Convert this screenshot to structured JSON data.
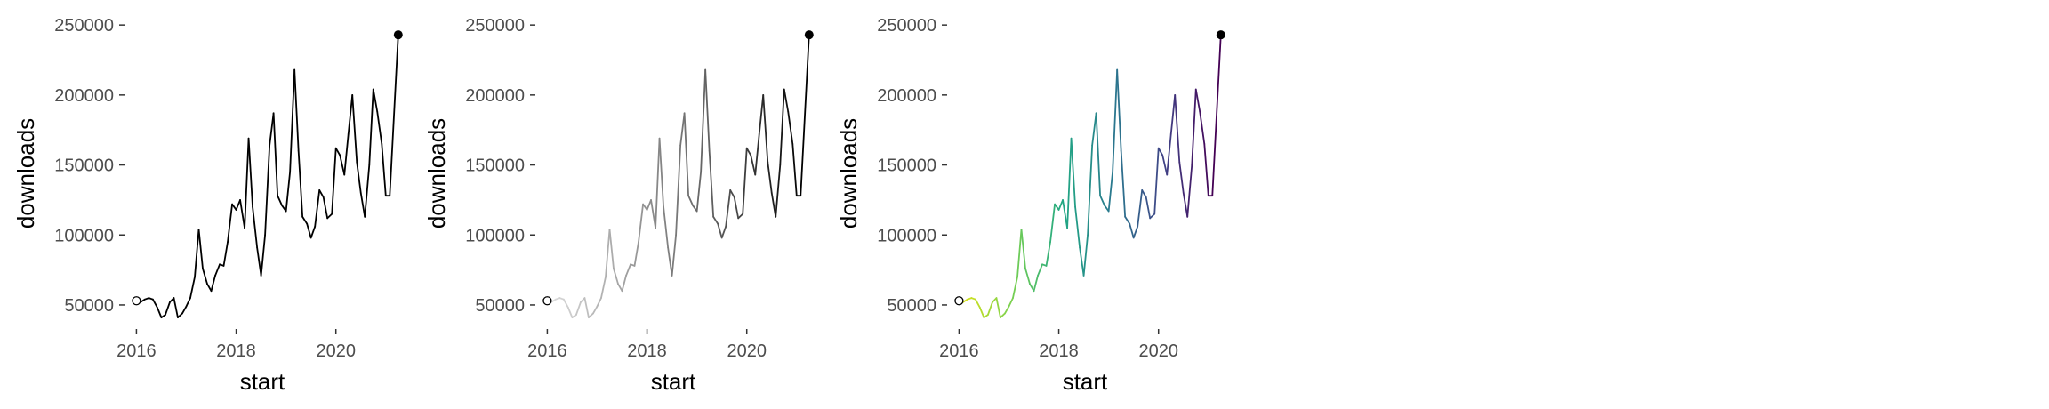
{
  "chart_data": [
    {
      "type": "line",
      "xlabel": "start",
      "ylabel": "downloads",
      "xlim": [
        2015.85,
        2021.2
      ],
      "ylim": [
        36000,
        252000
      ],
      "x_ticks": [
        2016,
        2018,
        2020
      ],
      "x_tick_labels": [
        "2016",
        "2018",
        "2020"
      ],
      "y_ticks": [
        50000,
        100000,
        150000,
        200000,
        250000
      ],
      "y_tick_labels": [
        "50000",
        "100000",
        "150000",
        "200000",
        "250000"
      ],
      "grid": false,
      "line_color": "#000000",
      "color_mode": "solid",
      "start_marker": "open-circle",
      "end_marker": "filled-circle",
      "series": [
        {
          "x": [
            2016.0,
            2016.08,
            2016.17,
            2016.25,
            2016.33,
            2016.42,
            2016.5,
            2016.58,
            2016.67,
            2016.75,
            2016.83,
            2016.92,
            2017.0,
            2017.08,
            2017.17,
            2017.25,
            2017.33,
            2017.42,
            2017.5,
            2017.58,
            2017.67,
            2017.75,
            2017.83,
            2017.92,
            2018.0,
            2018.08,
            2018.17,
            2018.25,
            2018.33,
            2018.42,
            2018.5,
            2018.58,
            2018.67,
            2018.75,
            2018.83,
            2018.92,
            2019.0,
            2019.08,
            2019.17,
            2019.25,
            2019.33,
            2019.42,
            2019.5,
            2019.58,
            2019.67,
            2019.75,
            2019.83,
            2019.92,
            2020.0,
            2020.08,
            2020.17,
            2020.25,
            2020.33,
            2020.42,
            2020.5,
            2020.58,
            2020.67,
            2020.75,
            2020.83,
            2020.92,
            2021.0,
            2021.08
          ],
          "y": [
            53000,
            52000,
            54000,
            55000,
            54000,
            48000,
            41000,
            43000,
            52000,
            55000,
            41000,
            44000,
            49000,
            55000,
            70000,
            104000,
            76000,
            65000,
            60000,
            71000,
            79000,
            78000,
            95000,
            122000,
            118000,
            125000,
            105000,
            169000,
            120000,
            91000,
            71000,
            100000,
            164000,
            187000,
            128000,
            121000,
            117000,
            145000,
            218000,
            160000,
            113000,
            108000,
            98000,
            106000,
            132000,
            127000,
            112000,
            115000,
            162000,
            157000,
            143000,
            172000,
            200000,
            152000,
            130000,
            113000,
            150000,
            204000,
            188000,
            165000,
            128000,
            128000
          ]
        }
      ],
      "end_point": {
        "x": 2021.25,
        "y": 243000
      }
    },
    {
      "type": "line",
      "xlabel": "start",
      "ylabel": "downloads",
      "xlim": [
        2015.85,
        2021.2
      ],
      "ylim": [
        36000,
        252000
      ],
      "x_ticks": [
        2016,
        2018,
        2020
      ],
      "x_tick_labels": [
        "2016",
        "2018",
        "2020"
      ],
      "y_ticks": [
        50000,
        100000,
        150000,
        200000,
        250000
      ],
      "y_tick_labels": [
        "50000",
        "100000",
        "150000",
        "200000",
        "250000"
      ],
      "grid": false,
      "color_mode": "gradient",
      "gradient_colors": [
        "#dddddd",
        "#9a9a9a",
        "#5a5a5a",
        "#000000"
      ],
      "start_marker": "open-circle",
      "end_marker": "filled-circle",
      "series": [
        {
          "x": [
            2016.0,
            2016.08,
            2016.17,
            2016.25,
            2016.33,
            2016.42,
            2016.5,
            2016.58,
            2016.67,
            2016.75,
            2016.83,
            2016.92,
            2017.0,
            2017.08,
            2017.17,
            2017.25,
            2017.33,
            2017.42,
            2017.5,
            2017.58,
            2017.67,
            2017.75,
            2017.83,
            2017.92,
            2018.0,
            2018.08,
            2018.17,
            2018.25,
            2018.33,
            2018.42,
            2018.5,
            2018.58,
            2018.67,
            2018.75,
            2018.83,
            2018.92,
            2019.0,
            2019.08,
            2019.17,
            2019.25,
            2019.33,
            2019.42,
            2019.5,
            2019.58,
            2019.67,
            2019.75,
            2019.83,
            2019.92,
            2020.0,
            2020.08,
            2020.17,
            2020.25,
            2020.33,
            2020.42,
            2020.5,
            2020.58,
            2020.67,
            2020.75,
            2020.83,
            2020.92,
            2021.0,
            2021.08
          ],
          "y": [
            53000,
            52000,
            54000,
            55000,
            54000,
            48000,
            41000,
            43000,
            52000,
            55000,
            41000,
            44000,
            49000,
            55000,
            70000,
            104000,
            76000,
            65000,
            60000,
            71000,
            79000,
            78000,
            95000,
            122000,
            118000,
            125000,
            105000,
            169000,
            120000,
            91000,
            71000,
            100000,
            164000,
            187000,
            128000,
            121000,
            117000,
            145000,
            218000,
            160000,
            113000,
            108000,
            98000,
            106000,
            132000,
            127000,
            112000,
            115000,
            162000,
            157000,
            143000,
            172000,
            200000,
            152000,
            130000,
            113000,
            150000,
            204000,
            188000,
            165000,
            128000,
            128000
          ]
        }
      ],
      "end_point": {
        "x": 2021.25,
        "y": 243000
      }
    },
    {
      "type": "line",
      "xlabel": "start",
      "ylabel": "downloads",
      "xlim": [
        2015.85,
        2021.2
      ],
      "ylim": [
        36000,
        252000
      ],
      "x_ticks": [
        2016,
        2018,
        2020
      ],
      "x_tick_labels": [
        "2016",
        "2018",
        "2020"
      ],
      "y_ticks": [
        50000,
        100000,
        150000,
        200000,
        250000
      ],
      "y_tick_labels": [
        "50000",
        "100000",
        "150000",
        "200000",
        "250000"
      ],
      "grid": false,
      "color_mode": "gradient",
      "gradient_colors": [
        "#dce319",
        "#7ad151",
        "#22a884",
        "#2a788e",
        "#414487",
        "#440154"
      ],
      "start_marker": "open-circle",
      "end_marker": "filled-circle",
      "series": [
        {
          "x": [
            2016.0,
            2016.08,
            2016.17,
            2016.25,
            2016.33,
            2016.42,
            2016.5,
            2016.58,
            2016.67,
            2016.75,
            2016.83,
            2016.92,
            2017.0,
            2017.08,
            2017.17,
            2017.25,
            2017.33,
            2017.42,
            2017.5,
            2017.58,
            2017.67,
            2017.75,
            2017.83,
            2017.92,
            2018.0,
            2018.08,
            2018.17,
            2018.25,
            2018.33,
            2018.42,
            2018.5,
            2018.58,
            2018.67,
            2018.75,
            2018.83,
            2018.92,
            2019.0,
            2019.08,
            2019.17,
            2019.25,
            2019.33,
            2019.42,
            2019.5,
            2019.58,
            2019.67,
            2019.75,
            2019.83,
            2019.92,
            2020.0,
            2020.08,
            2020.17,
            2020.25,
            2020.33,
            2020.42,
            2020.5,
            2020.58,
            2020.67,
            2020.75,
            2020.83,
            2020.92,
            2021.0,
            2021.08
          ],
          "y": [
            53000,
            52000,
            54000,
            55000,
            54000,
            48000,
            41000,
            43000,
            52000,
            55000,
            41000,
            44000,
            49000,
            55000,
            70000,
            104000,
            76000,
            65000,
            60000,
            71000,
            79000,
            78000,
            95000,
            122000,
            118000,
            125000,
            105000,
            169000,
            120000,
            91000,
            71000,
            100000,
            164000,
            187000,
            128000,
            121000,
            117000,
            145000,
            218000,
            160000,
            113000,
            108000,
            98000,
            106000,
            132000,
            127000,
            112000,
            115000,
            162000,
            157000,
            143000,
            172000,
            200000,
            152000,
            130000,
            113000,
            150000,
            204000,
            188000,
            165000,
            128000,
            128000
          ]
        }
      ],
      "end_point": {
        "x": 2021.25,
        "y": 243000
      }
    }
  ]
}
